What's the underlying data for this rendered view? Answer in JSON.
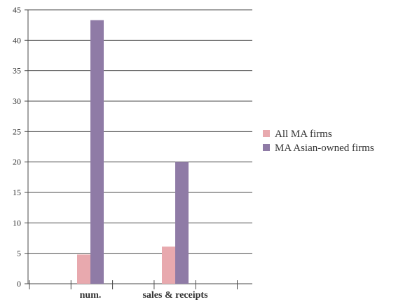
{
  "chart_data": {
    "type": "bar",
    "categories": [
      "num.",
      "sales & receipts"
    ],
    "series": [
      {
        "name": "All MA firms",
        "values": [
          4.8,
          6.1
        ],
        "color": "#e8a9ae"
      },
      {
        "name": "MA Asian-owned firms",
        "values": [
          43.3,
          20.0
        ],
        "color": "#8f7ba6"
      }
    ],
    "ylim": [
      0,
      45
    ],
    "yticks": [
      0,
      5,
      10,
      15,
      20,
      25,
      30,
      35,
      40,
      45
    ],
    "grid": true,
    "legend_position": "right",
    "title": "",
    "xlabel": "",
    "ylabel": ""
  }
}
